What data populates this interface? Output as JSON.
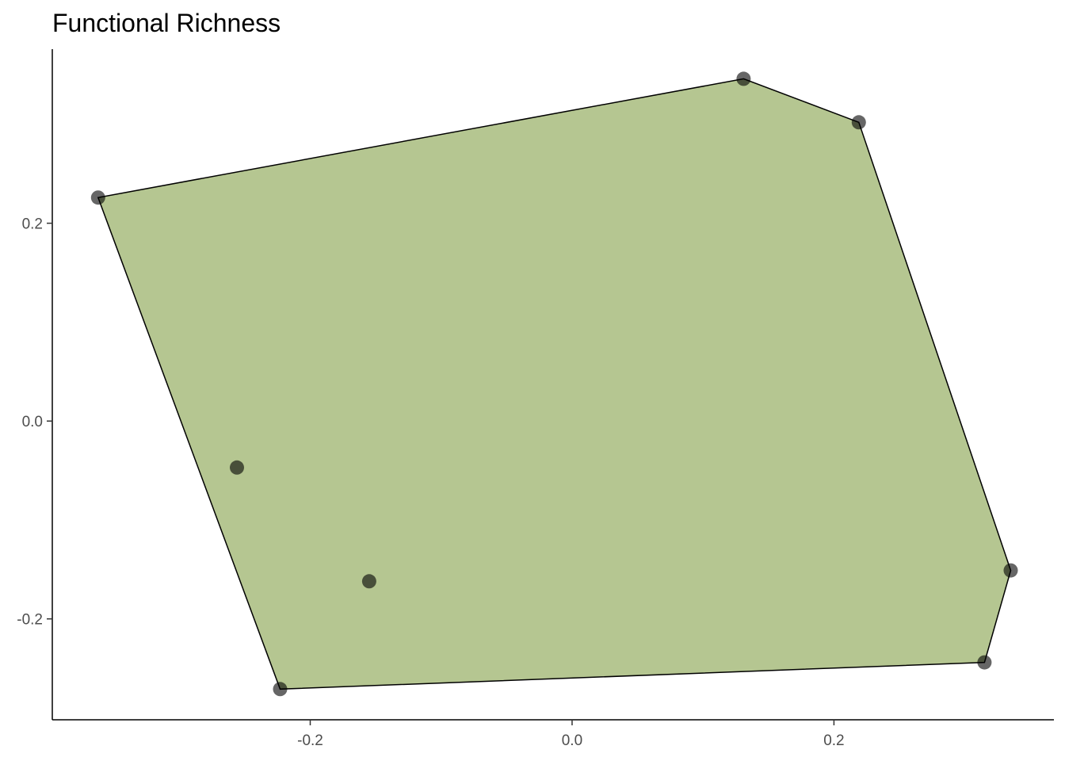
{
  "chart_data": {
    "type": "scatter",
    "title": "Functional Richness",
    "xlabel": "",
    "ylabel": "",
    "xlim": [
      -0.397,
      0.368
    ],
    "ylim": [
      -0.302,
      0.376
    ],
    "x_ticks": [
      -0.2,
      0.0,
      0.2
    ],
    "y_ticks": [
      -0.2,
      0.0,
      0.2
    ],
    "x_tick_labels": [
      "-0.2",
      "0.0",
      "0.2"
    ],
    "y_tick_labels": [
      "-0.2",
      "0.0",
      "0.2"
    ],
    "grid": false,
    "hull_fill_color": "#6b8e23",
    "hull_fill_opacity": 0.5,
    "point_color": "#000000",
    "points": [
      {
        "x": -0.362,
        "y": 0.226
      },
      {
        "x": 0.131,
        "y": 0.346
      },
      {
        "x": 0.219,
        "y": 0.302
      },
      {
        "x": 0.335,
        "y": -0.151
      },
      {
        "x": 0.315,
        "y": -0.244
      },
      {
        "x": -0.223,
        "y": -0.271
      },
      {
        "x": -0.256,
        "y": -0.047
      },
      {
        "x": -0.155,
        "y": -0.162
      }
    ],
    "hull_vertices": [
      {
        "x": -0.362,
        "y": 0.226
      },
      {
        "x": 0.131,
        "y": 0.346
      },
      {
        "x": 0.219,
        "y": 0.302
      },
      {
        "x": 0.335,
        "y": -0.151
      },
      {
        "x": 0.315,
        "y": -0.244
      },
      {
        "x": -0.223,
        "y": -0.271
      }
    ]
  }
}
